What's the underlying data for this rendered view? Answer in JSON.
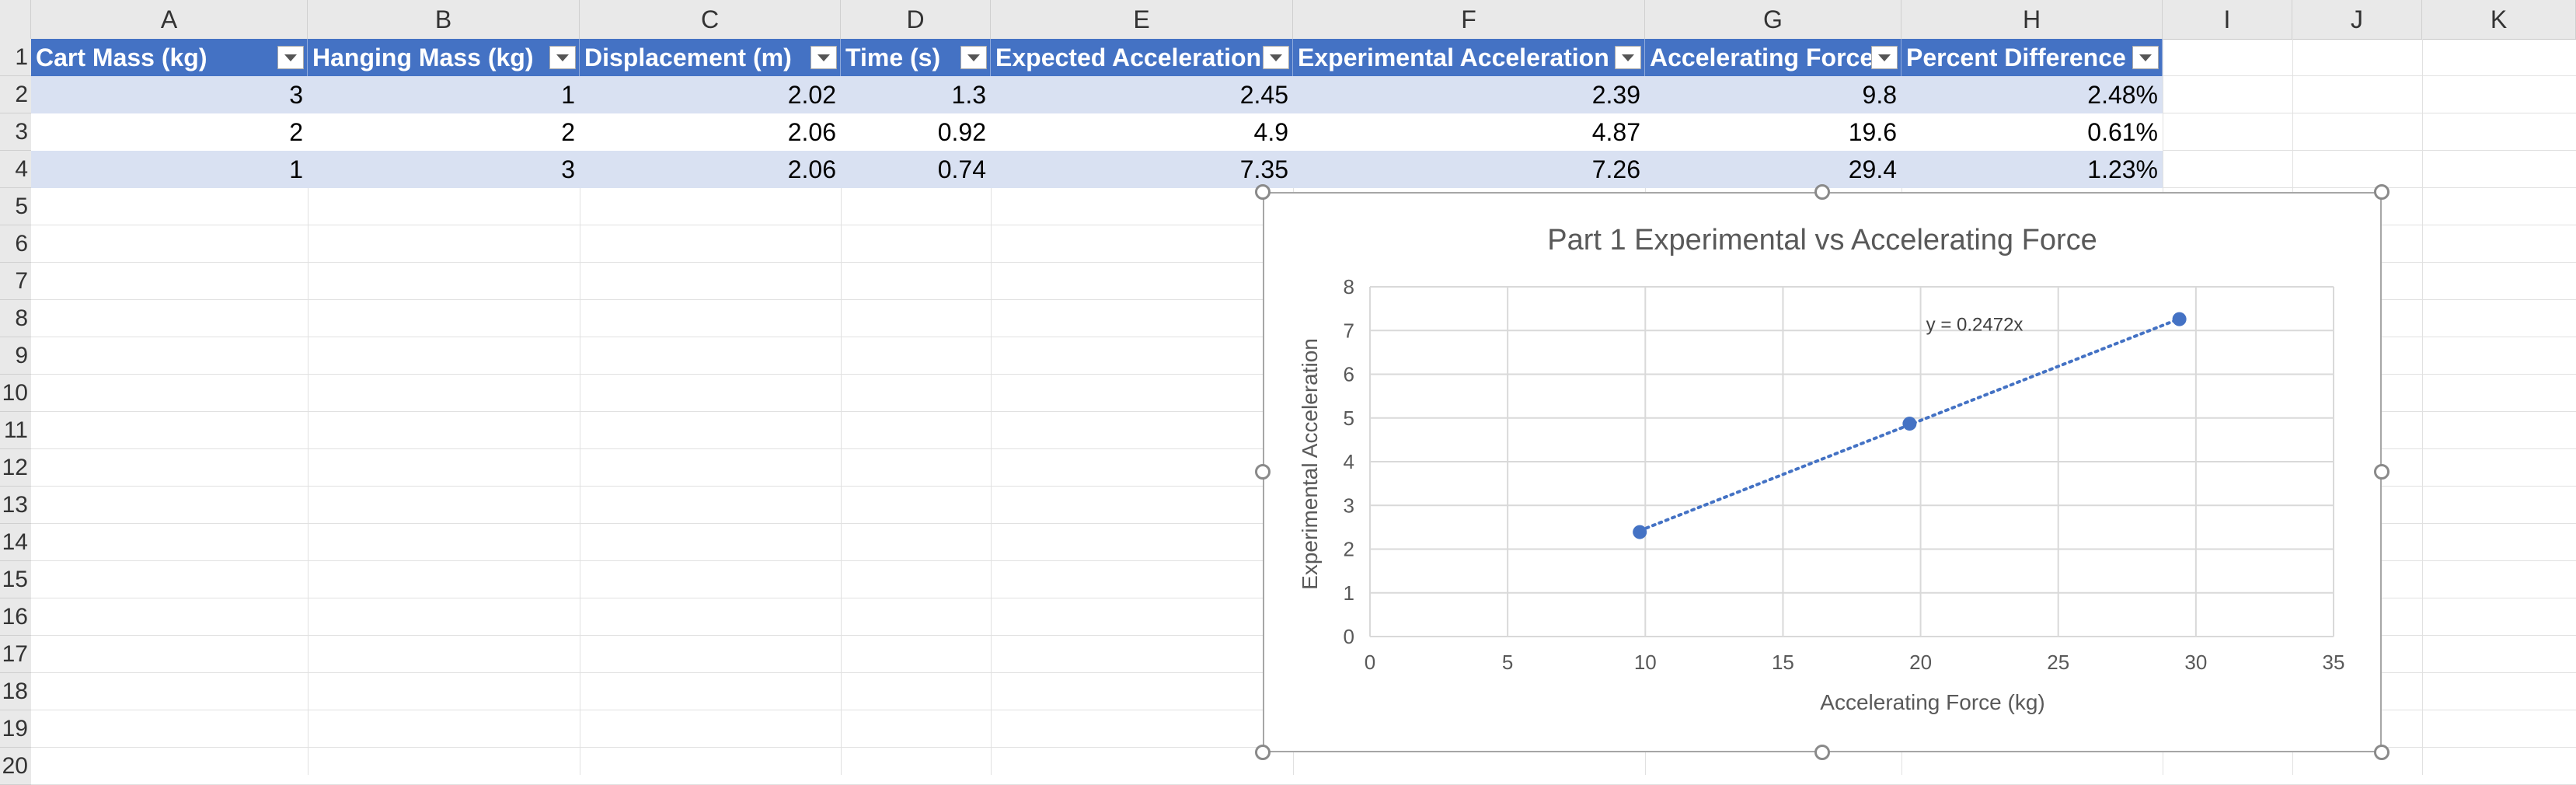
{
  "columns": [
    "A",
    "B",
    "C",
    "D",
    "E",
    "F",
    "G",
    "H",
    "I",
    "J",
    "K"
  ],
  "rows": [
    "1",
    "2",
    "3",
    "4",
    "5",
    "6",
    "7",
    "8",
    "9",
    "10",
    "11",
    "12",
    "13",
    "14",
    "15",
    "16",
    "17",
    "18",
    "19",
    "20"
  ],
  "table": {
    "headers": [
      "Cart Mass (kg)",
      "Hanging Mass (kg)",
      "Displacement (m)",
      "Time (s)",
      "Expected Acceleration",
      "Experimental Acceleration",
      "Accelerating Force",
      "Percent Difference"
    ],
    "data": [
      [
        "3",
        "1",
        "2.02",
        "1.3",
        "2.45",
        "2.39",
        "9.8",
        "2.48%"
      ],
      [
        "2",
        "2",
        "2.06",
        "0.92",
        "4.9",
        "4.87",
        "19.6",
        "0.61%"
      ],
      [
        "1",
        "3",
        "2.06",
        "0.74",
        "7.35",
        "7.26",
        "29.4",
        "1.23%"
      ]
    ]
  },
  "chart_data": {
    "type": "scatter",
    "title": "Part 1 Experimental vs Accelerating Force",
    "xlabel": "Accelerating Force (kg)",
    "ylabel": "Experimental Acceleration",
    "x": [
      9.8,
      19.6,
      29.4
    ],
    "y": [
      2.39,
      4.87,
      7.26
    ],
    "xlim": [
      0,
      35
    ],
    "ylim": [
      0,
      8
    ],
    "xticks": [
      "0",
      "5",
      "10",
      "15",
      "20",
      "25",
      "30",
      "35"
    ],
    "yticks": [
      "0",
      "1",
      "2",
      "3",
      "4",
      "5",
      "6",
      "7",
      "8"
    ],
    "grid": true,
    "trendline": {
      "type": "linear-through-origin",
      "slope": 0.2472,
      "label": "y = 0.2472x",
      "style": "dotted"
    },
    "marker_color": "#4472c4"
  },
  "colors": {
    "header_fill": "#4472c4",
    "band_fill": "#d9e1f2"
  }
}
